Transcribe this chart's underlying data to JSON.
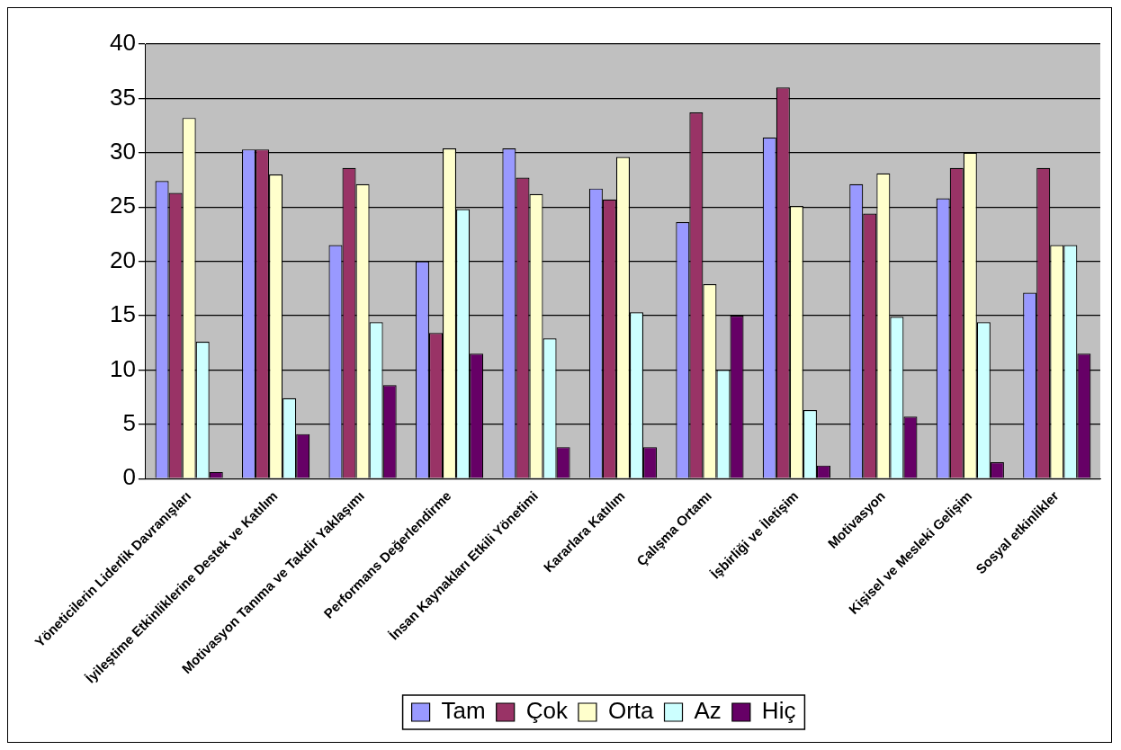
{
  "chart_data": {
    "type": "bar",
    "categories": [
      "Yöneticilerin Liderlik Davranışları",
      "İyileştime Etkinliklerine Destek ve Katılım",
      "Motivasyon Tanıma ve Takdir Yaklaşımı",
      "Performans Değerlendirme",
      "İnsan Kaynakları Etkili Yönetimi",
      "Kararlara Katılım",
      "Çalışma Ortamı",
      "İşbirliği ve İletişim",
      "Motivasyon",
      "Kişisel ve Mesleki Gelişim",
      "Sosyal etkinlikler"
    ],
    "series": [
      {
        "name": "Tam",
        "color": "#9999ff",
        "values": [
          27.4,
          30.3,
          21.5,
          20,
          30.4,
          26.7,
          23.6,
          31.4,
          27.1,
          25.8,
          17.1
        ]
      },
      {
        "name": "Çok",
        "color": "#993366",
        "values": [
          26.3,
          30.3,
          28.6,
          13.4,
          27.7,
          25.7,
          33.7,
          36,
          24.4,
          28.6,
          28.6
        ]
      },
      {
        "name": "Orta",
        "color": "#ffffcc",
        "values": [
          33.2,
          28,
          27.1,
          30.4,
          26.2,
          29.6,
          17.9,
          25.1,
          28.1,
          30,
          21.5
        ]
      },
      {
        "name": "Az",
        "color": "#ccffff",
        "values": [
          12.6,
          7.4,
          14.4,
          24.8,
          12.9,
          15.3,
          10,
          6.3,
          14.9,
          14.4,
          21.5
        ]
      },
      {
        "name": "Hiç",
        "color": "#660066",
        "values": [
          0.6,
          4.1,
          8.6,
          11.5,
          2.9,
          2.9,
          15,
          1.2,
          5.7,
          1.5,
          11.5
        ]
      }
    ],
    "ylim": [
      0,
      40
    ],
    "yticks": [
      0,
      5,
      10,
      15,
      20,
      25,
      30,
      35,
      40
    ],
    "grid": "y",
    "legend": "bottom"
  }
}
